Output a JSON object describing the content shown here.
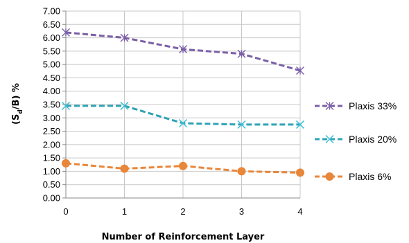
{
  "chart_data": {
    "type": "line",
    "xlabel": "Number of Reinforcement Layer",
    "ylabel": "(S",
    "ylabel_sub": "d",
    "ylabel_rest": "/B) %",
    "x": [
      0,
      1,
      2,
      3,
      4
    ],
    "x_tick_labels": [
      "0",
      "1",
      "2",
      "3",
      "4"
    ],
    "ylim": [
      0,
      7
    ],
    "y_tick_labels": [
      "0.00",
      "0.50",
      "1.00",
      "1.50",
      "2.00",
      "2.50",
      "3.00",
      "3.50",
      "4.00",
      "4.50",
      "5.00",
      "5.50",
      "6.00",
      "6.50",
      "7.00"
    ],
    "grid": true,
    "legend_position": "right",
    "series": [
      {
        "name": "Plaxis 33%",
        "values": [
          6.2,
          6.0,
          5.57,
          5.4,
          4.77
        ],
        "color": "#7a5fa6",
        "marker": "star",
        "marker_color": "#7a5fa6"
      },
      {
        "name": "Plaxis 20%",
        "values": [
          3.45,
          3.45,
          2.8,
          2.75,
          2.75
        ],
        "color": "#2ea3b5",
        "marker": "asterisk",
        "marker_color": "#3cc0d8"
      },
      {
        "name": "Plaxis 6%",
        "values": [
          1.3,
          1.1,
          1.2,
          1.0,
          0.95
        ],
        "color": "#e8863a",
        "marker": "circle",
        "marker_color": "#e8863a"
      }
    ]
  }
}
